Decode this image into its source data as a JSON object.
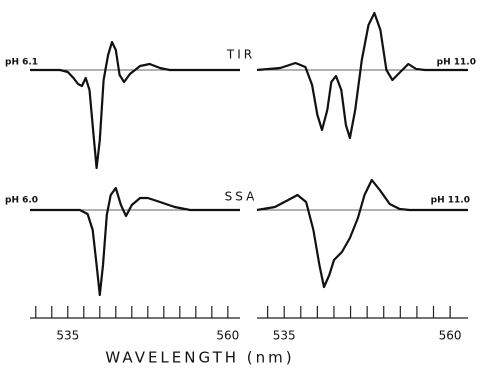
{
  "chart_data": [
    {
      "type": "line",
      "title": "TIR",
      "annotation": "pH 6.1",
      "x": [
        529.1,
        533.8,
        535,
        535.9,
        536.6,
        537.2,
        537.8,
        538.4,
        539.1,
        539.5,
        540,
        540.6,
        541.3,
        541.9,
        542.5,
        543.1,
        543.8,
        544.7,
        546.3,
        547.8,
        549.4,
        550.9,
        555.6,
        561.9
      ],
      "values": [
        0,
        0,
        -2,
        -8,
        -14,
        -16,
        -8,
        -20,
        -70,
        -98,
        -70,
        -10,
        15,
        28,
        20,
        -5,
        -12,
        -4,
        4,
        6,
        2,
        0,
        0,
        0
      ],
      "xlim": [
        529.1,
        561.9
      ],
      "ylim": [
        -100,
        60
      ],
      "color": "#111111"
    },
    {
      "type": "line",
      "annotation": "pH 11.0",
      "x": [
        530.9,
        534.4,
        536.7,
        538.2,
        539.2,
        540,
        540.7,
        541.5,
        542.1,
        542.8,
        543.6,
        544.3,
        544.9,
        545.7,
        546.7,
        547.7,
        548.6,
        549.5,
        550.4,
        551.3,
        552.5,
        553.7,
        554.9,
        556.2,
        562.7
      ],
      "values": [
        0,
        2,
        7,
        3,
        -15,
        -45,
        -60,
        -40,
        -12,
        -6,
        -20,
        -55,
        -68,
        -40,
        10,
        45,
        57,
        40,
        0,
        -10,
        -2,
        6,
        1,
        0,
        0
      ],
      "xlim": [
        530.9,
        562.7
      ],
      "ylim": [
        -100,
        60
      ],
      "color": "#111111"
    },
    {
      "type": "line",
      "title": "SSA",
      "annotation": "pH 6.0",
      "xlabel": "WAVELENGTH (nm)",
      "x": [
        529.1,
        536.9,
        538.1,
        538.9,
        539.5,
        540,
        540.5,
        541.1,
        541.7,
        542.5,
        543.3,
        544.1,
        545,
        546.3,
        547.5,
        549.4,
        551.7,
        554.1,
        561.9
      ],
      "values": [
        0,
        0,
        -4,
        -20,
        -55,
        -85,
        -55,
        -5,
        15,
        22,
        5,
        -6,
        5,
        12,
        12,
        8,
        3,
        0,
        0
      ],
      "xlim": [
        529.1,
        561.9
      ],
      "ylim": [
        -90,
        40
      ],
      "color": "#111111",
      "xticks": [
        535,
        560
      ],
      "minor_xticks": [
        530,
        532.5,
        537.5,
        540,
        542.5,
        545,
        547.5,
        550,
        552.5,
        555,
        557.5
      ]
    },
    {
      "type": "line",
      "annotation": "pH 11.0",
      "x": [
        530.9,
        533.6,
        535.6,
        537,
        538.3,
        539.4,
        540.3,
        541,
        541.8,
        542.5,
        543.7,
        544.9,
        546.1,
        547.1,
        548.2,
        549.4,
        550.9,
        552.4,
        553.9,
        562.7
      ],
      "values": [
        0,
        3,
        10,
        15,
        8,
        -20,
        -55,
        -77,
        -65,
        -50,
        -42,
        -28,
        -8,
        15,
        30,
        20,
        6,
        1,
        0,
        0
      ],
      "xlim": [
        530.9,
        562.7
      ],
      "ylim": [
        -90,
        40
      ],
      "color": "#111111",
      "xticks": [
        535,
        560
      ],
      "minor_xticks": [
        532.5,
        537.5,
        540,
        542.5,
        545,
        547.5,
        550,
        552.5,
        555,
        557.5,
        560
      ]
    }
  ]
}
